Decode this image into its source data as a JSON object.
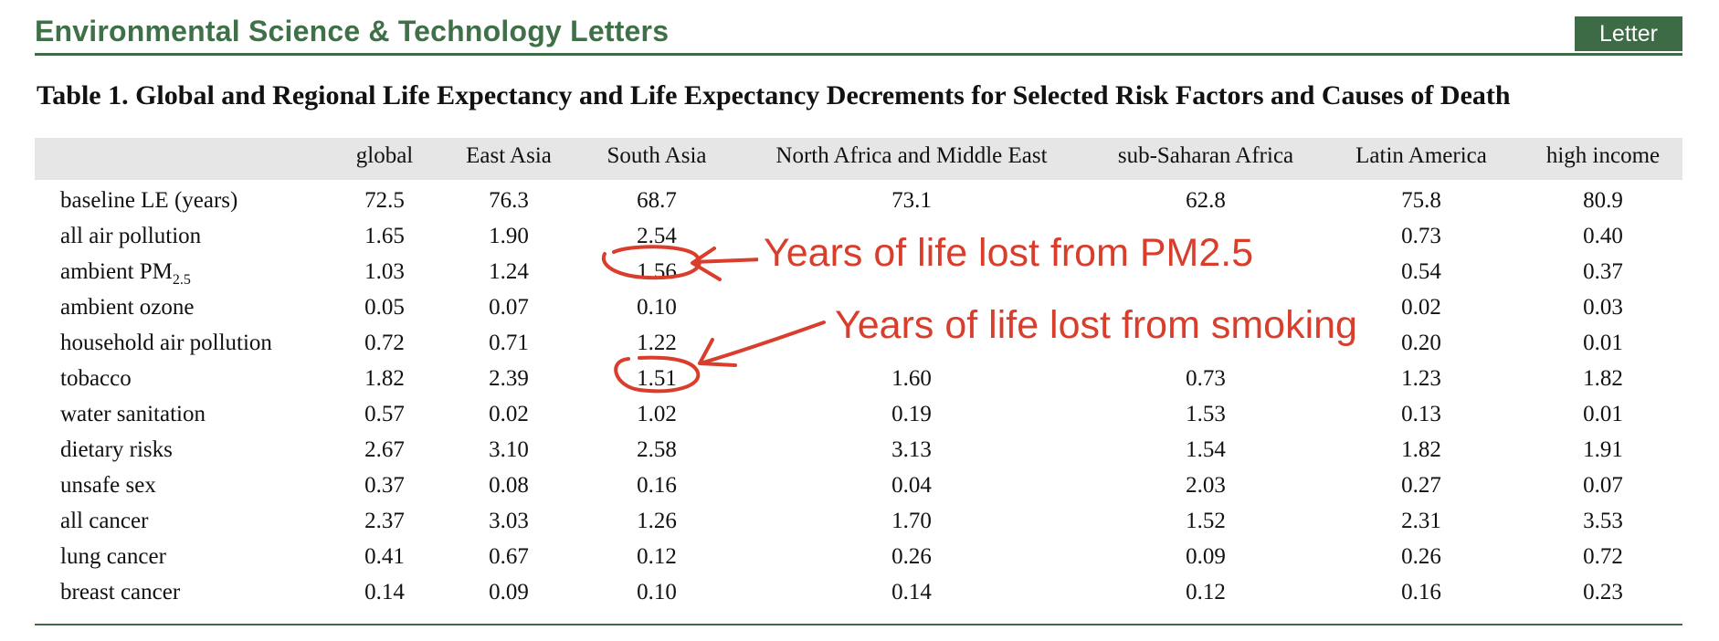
{
  "journal": {
    "name": "Environmental Science & Technology Letters",
    "article_type": "Letter"
  },
  "table": {
    "title": "Table 1. Global and Regional Life Expectancy and Life Expectancy Decrements for Selected Risk Factors and Causes of Death",
    "columns": [
      "global",
      "East Asia",
      "South Asia",
      "North Africa and Middle East",
      "sub-Saharan Africa",
      "Latin America",
      "high income"
    ],
    "rows": [
      {
        "label": "baseline LE (years)",
        "values": [
          "72.5",
          "76.3",
          "68.7",
          "73.1",
          "62.8",
          "75.8",
          "80.9"
        ]
      },
      {
        "label": "all air pollution",
        "values": [
          "1.65",
          "1.90",
          "2.54",
          "",
          "",
          "0.73",
          "0.40"
        ]
      },
      {
        "label": "ambient PM",
        "label_sub": "2.5",
        "values": [
          "1.03",
          "1.24",
          "1.56",
          "",
          "",
          "0.54",
          "0.37"
        ]
      },
      {
        "label": "ambient ozone",
        "values": [
          "0.05",
          "0.07",
          "0.10",
          "",
          "",
          "0.02",
          "0.03"
        ]
      },
      {
        "label": "household air pollution",
        "values": [
          "0.72",
          "0.71",
          "1.22",
          "",
          "",
          "0.20",
          "0.01"
        ]
      },
      {
        "label": "tobacco",
        "values": [
          "1.82",
          "2.39",
          "1.51",
          "1.60",
          "0.73",
          "1.23",
          "1.82"
        ]
      },
      {
        "label": "water sanitation",
        "values": [
          "0.57",
          "0.02",
          "1.02",
          "0.19",
          "1.53",
          "0.13",
          "0.01"
        ]
      },
      {
        "label": "dietary risks",
        "values": [
          "2.67",
          "3.10",
          "2.58",
          "3.13",
          "1.54",
          "1.82",
          "1.91"
        ]
      },
      {
        "label": "unsafe sex",
        "values": [
          "0.37",
          "0.08",
          "0.16",
          "0.04",
          "2.03",
          "0.27",
          "0.07"
        ]
      },
      {
        "label": "all cancer",
        "values": [
          "2.37",
          "3.03",
          "1.26",
          "1.70",
          "1.52",
          "2.31",
          "3.53"
        ]
      },
      {
        "label": "lung cancer",
        "values": [
          "0.41",
          "0.67",
          "0.12",
          "0.26",
          "0.09",
          "0.26",
          "0.72"
        ]
      },
      {
        "label": "breast cancer",
        "values": [
          "0.14",
          "0.09",
          "0.10",
          "0.14",
          "0.12",
          "0.16",
          "0.23"
        ]
      }
    ]
  },
  "annotations": {
    "pm25_note": "Years of life lost from PM2.5",
    "smoking_note": "Years of life lost from smoking",
    "color": "#d93d2b"
  },
  "colors": {
    "brand_green": "#3c6b45",
    "header_band": "#e6e6e6"
  }
}
